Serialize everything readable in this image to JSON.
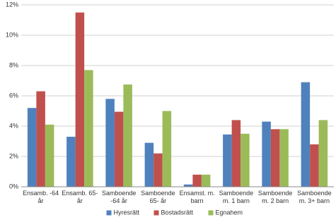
{
  "chart_data": {
    "type": "bar",
    "categories": [
      "Ensamb. -64 år",
      "Ensamb. 65- år",
      "Samboende -64 år",
      "Samboende 65- år",
      "Ensamst. m. barn",
      "Samboende m. 1 barn",
      "Samboende m. 2 barn",
      "Samboende m. 3+ barn"
    ],
    "series": [
      {
        "name": "Hyresrätt",
        "color": "#4f81bd",
        "values": [
          5.2,
          3.3,
          5.8,
          2.9,
          0.15,
          3.45,
          4.3,
          6.9
        ]
      },
      {
        "name": "Bostadsrätt",
        "color": "#c0504d",
        "values": [
          6.3,
          11.5,
          4.95,
          2.2,
          0.8,
          4.4,
          3.8,
          2.8
        ]
      },
      {
        "name": "Egnahem",
        "color": "#9bbb59",
        "values": [
          4.1,
          7.7,
          6.75,
          5.0,
          0.8,
          3.5,
          3.8,
          4.4
        ]
      }
    ],
    "ylim": [
      0,
      12
    ],
    "yticks": [
      {
        "value": 0,
        "label": "0%"
      },
      {
        "value": 2,
        "label": "2%"
      },
      {
        "value": 4,
        "label": "4%"
      },
      {
        "value": 6,
        "label": "6%"
      },
      {
        "value": 8,
        "label": "8%"
      },
      {
        "value": 10,
        "label": "10%"
      },
      {
        "value": 12,
        "label": "12%"
      }
    ],
    "grid": true,
    "legend": "bottom"
  }
}
